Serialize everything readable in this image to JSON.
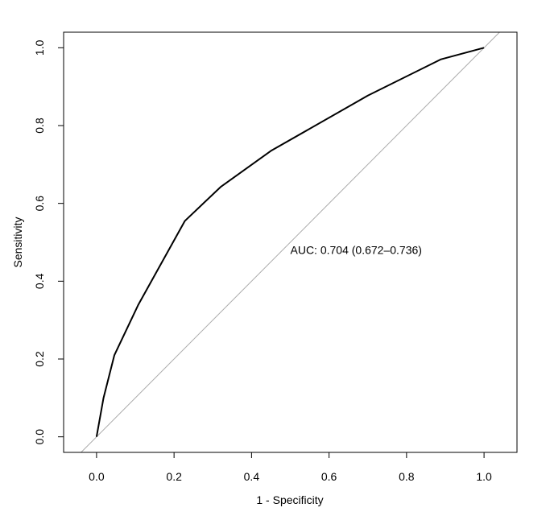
{
  "chart_data": {
    "type": "line",
    "title": "",
    "xlabel": "1 - Specificity",
    "ylabel": "Sensitivity",
    "xlim": [
      -0.085,
      1.085
    ],
    "ylim": [
      -0.04,
      1.04
    ],
    "x_ticks": [
      0.0,
      0.2,
      0.4,
      0.6,
      0.8,
      1.0
    ],
    "x_tick_labels": [
      "0.0",
      "0.2",
      "0.4",
      "0.6",
      "0.8",
      "1.0"
    ],
    "y_ticks": [
      0.0,
      0.2,
      0.4,
      0.6,
      0.8,
      1.0
    ],
    "y_tick_labels": [
      "0.0",
      "0.2",
      "0.4",
      "0.6",
      "0.8",
      "1.0"
    ],
    "grid": false,
    "series": [
      {
        "color": "#000000",
        "x": [
          0.0,
          0.018,
          0.046,
          0.108,
          0.228,
          0.32,
          0.45,
          0.7,
          0.888,
          1.0
        ],
        "y": [
          0.0,
          0.1,
          0.21,
          0.34,
          0.555,
          0.642,
          0.735,
          0.877,
          0.97,
          1.0
        ]
      }
    ],
    "reference_line": {
      "color": "#aaaaaa",
      "from": [
        -0.04,
        -0.04
      ],
      "to": [
        1.04,
        1.04
      ]
    },
    "annotations": [
      {
        "text": "AUC: 0.704 (0.672–0.736)",
        "x": 0.5,
        "y": 0.48
      }
    ]
  }
}
